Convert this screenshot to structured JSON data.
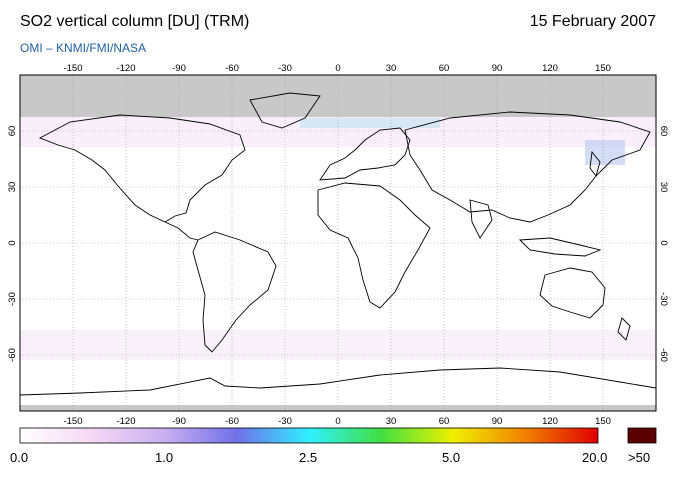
{
  "title": "SO2 vertical column [DU] (TRM)",
  "date": "15 February 2007",
  "credit": "OMI  –  KNMI/FMI/NASA",
  "map": {
    "lon_ticks": [
      "-150",
      "-120",
      "-90",
      "-60",
      "-30",
      "0",
      "30",
      "60",
      "90",
      "120",
      "150"
    ],
    "lat_ticks": [
      "60",
      "30",
      "0",
      "-30",
      "-60"
    ],
    "lon_range": [
      -180,
      180
    ],
    "lat_range": [
      -90,
      90
    ],
    "no_data_color": "#c8c8c8",
    "grid": true,
    "coastline_color": "#000000"
  },
  "colorbar": {
    "labels": [
      "0.0",
      "1.0",
      "2.5",
      "5.0",
      "20.0"
    ],
    "overflow_label": ">50",
    "overflow_color": "#5a0000",
    "stops": [
      "#ffffff",
      "#f4d8f4",
      "#c8b0f0",
      "#7070e8",
      "#30f0ff",
      "#40e040",
      "#f0f000",
      "#f08000",
      "#e00000"
    ]
  }
}
